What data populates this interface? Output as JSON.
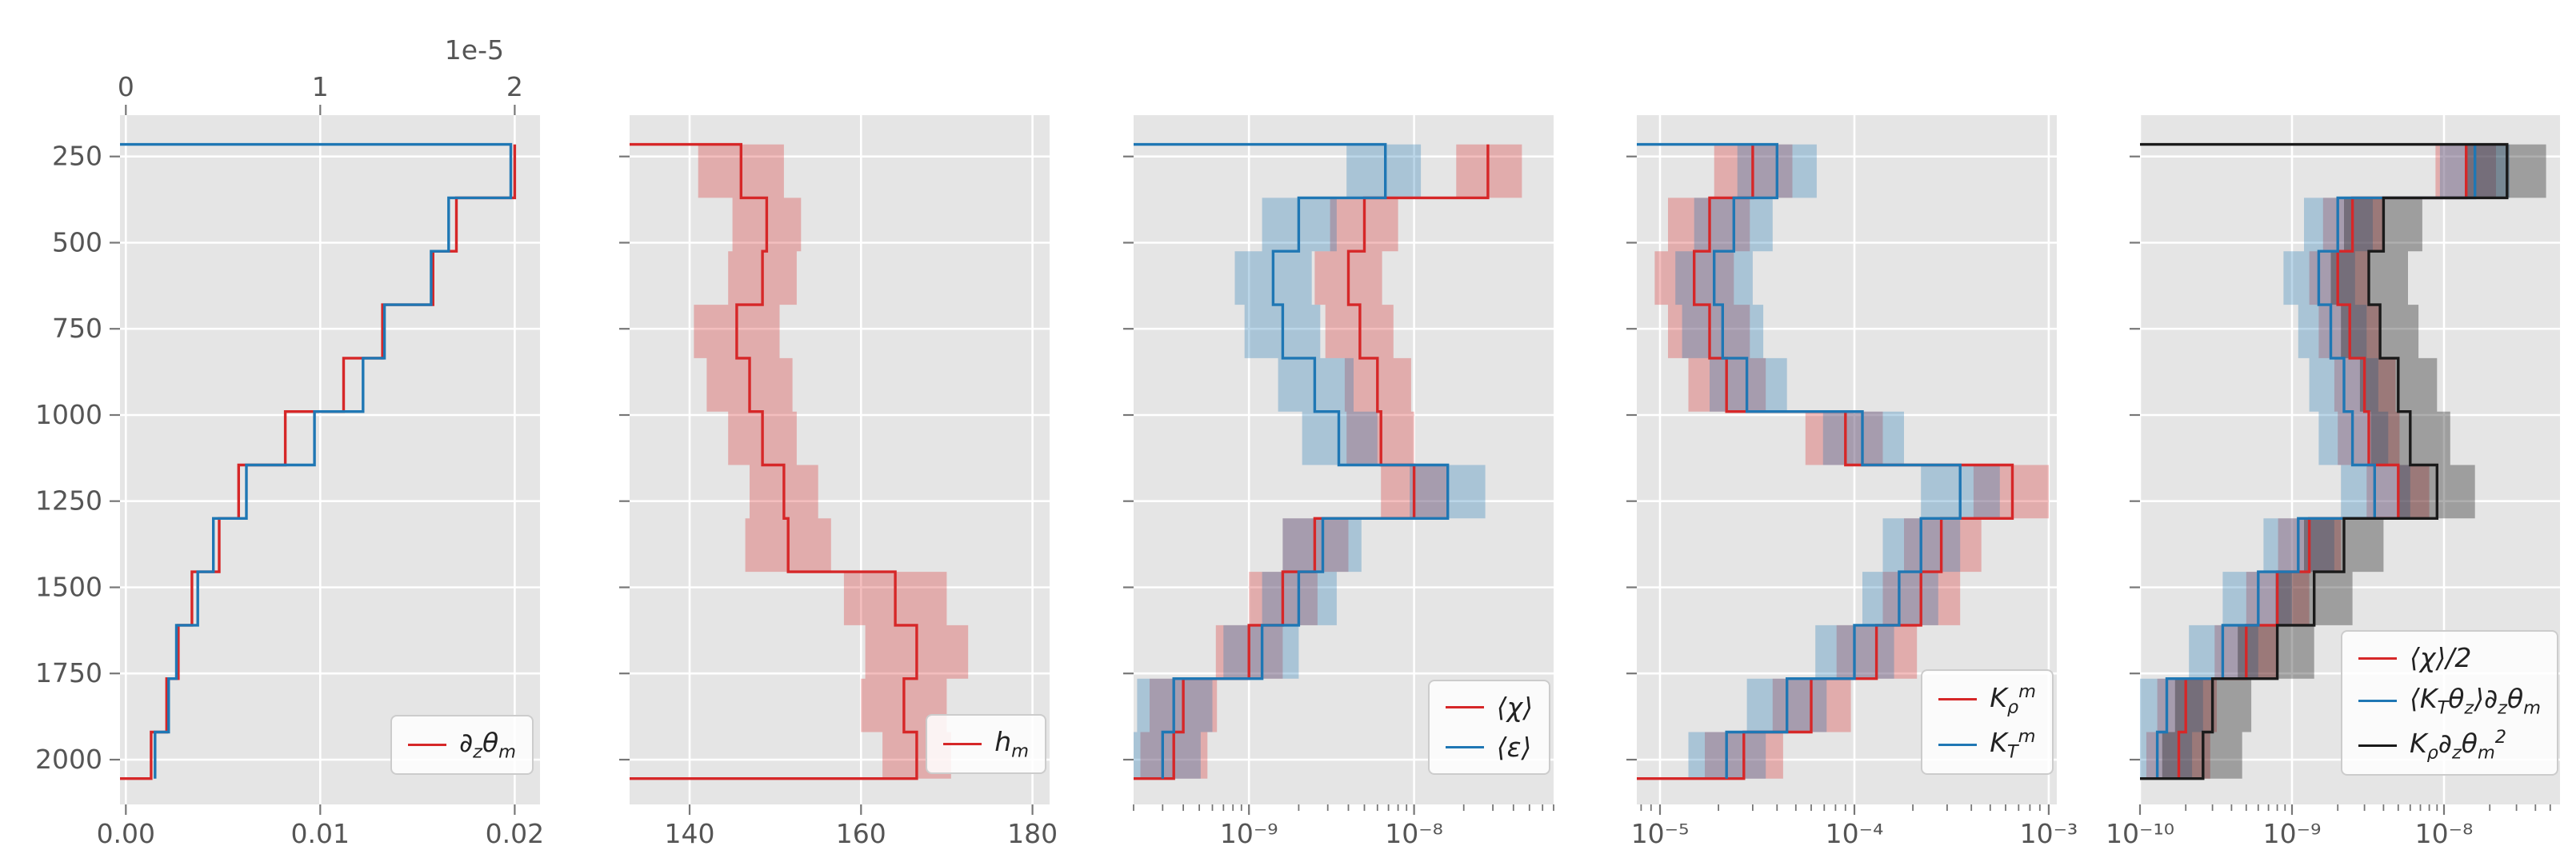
{
  "figure": {
    "background": "#ffffff",
    "panel_background": "#e5e5e5",
    "grid_color": "#ffffff",
    "tick_color": "#777777",
    "text_color": "#555555",
    "colors": {
      "red": "#d62728",
      "blue": "#1f77b4",
      "black": "#1a1a1a"
    }
  },
  "chart_data": {
    "type": "step-profile-panels",
    "shared": {
      "depth_lim": [
        130,
        2130
      ],
      "depth_ticks": [
        250,
        500,
        750,
        1000,
        1250,
        1500,
        1750,
        2000
      ],
      "depth_tick_labels": [
        "250",
        "500",
        "750",
        "1000",
        "1250",
        "1500",
        "1750",
        "2000"
      ],
      "bin_edges": [
        215,
        370,
        525,
        680,
        835,
        990,
        1145,
        1300,
        1455,
        1610,
        1765,
        1920,
        2055
      ]
    },
    "panels": [
      {
        "name": "dz-theta-m",
        "x": {
          "scale": "linear",
          "lim": [
            -0.0003,
            0.0213
          ],
          "ticks": [
            {
              "v": 0,
              "label": "0.00"
            },
            {
              "v": 0.01,
              "label": "0.01"
            },
            {
              "v": 0.02,
              "label": "0.02"
            }
          ]
        },
        "top_axis": {
          "scale": "linear",
          "lim": [
            -0.03,
            2.13
          ],
          "ticks": [
            {
              "v": 0,
              "label": "0"
            },
            {
              "v": 1,
              "label": "1"
            },
            {
              "v": 2,
              "label": "2"
            }
          ],
          "offset_label": "1e-5"
        },
        "series": [
          {
            "id": "dz-theta-m",
            "color": "red",
            "axis": "bottom",
            "end_at_left": true,
            "values": [
              0.02,
              0.017,
              0.0158,
              0.0132,
              0.0112,
              0.0082,
              0.0058,
              0.0048,
              0.0034,
              0.0027,
              0.0021,
              0.0013
            ]
          },
          {
            "id": "dz-theta-m-1e-5",
            "color": "blue",
            "axis": "top",
            "start_at_left": true,
            "values": [
              1.98,
              1.66,
              1.57,
              1.33,
              1.22,
              0.97,
              0.62,
              0.45,
              0.37,
              0.26,
              0.22,
              0.15
            ]
          }
        ],
        "legend": {
          "right": 8,
          "bottom": 37,
          "entries": [
            {
              "color": "red",
              "text": "∂_zθ_m",
              "segs": [
                [
                  "∂",
                  "n"
                ],
                [
                  "z",
                  "s"
                ],
                [
                  "θ",
                  "n"
                ],
                [
                  "m",
                  "s"
                ]
              ]
            }
          ]
        }
      },
      {
        "name": "h-m",
        "x": {
          "scale": "linear",
          "lim": [
            133,
            182
          ],
          "ticks": [
            {
              "v": 140,
              "label": "140"
            },
            {
              "v": 160,
              "label": "160"
            },
            {
              "v": 180,
              "label": "180"
            }
          ]
        },
        "series": [
          {
            "id": "h-m",
            "color": "red",
            "axis": "bottom",
            "start_at_left": true,
            "end_at_left": true,
            "values": [
              146,
              149,
              148.5,
              145.5,
              147,
              148.5,
              151,
              151.5,
              164,
              166.5,
              165,
              166.5
            ],
            "band": {
              "lo": [
                141,
                145,
                144.5,
                140.5,
                142,
                144.5,
                147,
                146.5,
                158,
                160.5,
                160,
                162.5
              ],
              "hi": [
                151,
                153,
                152.5,
                150.5,
                152,
                152.5,
                155,
                156.5,
                170,
                172.5,
                170,
                170.5
              ]
            }
          }
        ],
        "legend": {
          "right": 4,
          "bottom": 38,
          "entries": [
            {
              "color": "red",
              "text": "h_m",
              "segs": [
                [
                  "h",
                  "n"
                ],
                [
                  "m",
                  "s"
                ]
              ]
            }
          ]
        }
      },
      {
        "name": "chi-epsilon",
        "x": {
          "scale": "log",
          "lim": [
            2e-10,
            7e-08
          ],
          "ticks": [
            {
              "v": 1e-09,
              "label": "10⁻⁹"
            },
            {
              "v": 1e-08,
              "label": "10⁻⁸"
            }
          ]
        },
        "series": [
          {
            "id": "chi",
            "color": "red",
            "axis": "bottom",
            "end_at_left": true,
            "values": [
              2.8e-08,
              5e-09,
              4e-09,
              4.7e-09,
              6e-09,
              6.3e-09,
              1e-08,
              2.5e-09,
              1.6e-09,
              1e-09,
              4e-10,
              3.5e-10
            ],
            "band": {
              "lo": [
                1.8e-08,
                3.1e-09,
                2.5e-09,
                2.9e-09,
                3.8e-09,
                3.9e-09,
                6.3e-09,
                1.6e-09,
                1e-09,
                6.3e-10,
                2.5e-10,
                2.2e-10
              ],
              "hi": [
                4.5e-08,
                8e-09,
                6.4e-09,
                7.5e-09,
                9.6e-09,
                1e-08,
                1.6e-08,
                4e-09,
                2.6e-09,
                1.6e-09,
                6.4e-10,
                5.6e-10
              ]
            }
          },
          {
            "id": "epsilon",
            "color": "blue",
            "axis": "bottom",
            "start_at_left": true,
            "values": [
              6.7e-09,
              2e-09,
              1.4e-09,
              1.6e-09,
              2.5e-09,
              3.5e-09,
              1.6e-08,
              2.8e-09,
              2e-09,
              1.2e-09,
              3.5e-10,
              3e-10
            ],
            "band": {
              "lo": [
                3.9e-09,
                1.2e-09,
                8.2e-10,
                9.4e-10,
                1.5e-09,
                2.1e-09,
                9.4e-09,
                1.6e-09,
                1.2e-09,
                7e-10,
                2.1e-10,
                1.8e-10
              ],
              "hi": [
                1.1e-08,
                3.4e-09,
                2.4e-09,
                2.7e-09,
                4.3e-09,
                6e-09,
                2.7e-08,
                4.8e-09,
                3.4e-09,
                2e-09,
                6e-10,
                5.1e-10
              ]
            }
          }
        ],
        "legend": {
          "right": 4,
          "bottom": 37,
          "entries": [
            {
              "color": "red",
              "text": "⟨χ⟩",
              "segs": [
                [
                  "⟨χ⟩",
                  "n"
                ]
              ]
            },
            {
              "color": "blue",
              "text": "⟨ε⟩",
              "segs": [
                [
                  "⟨ε⟩",
                  "n"
                ]
              ]
            }
          ]
        }
      },
      {
        "name": "k-rho-kt",
        "x": {
          "scale": "log",
          "lim": [
            7.6e-06,
            0.0011
          ],
          "ticks": [
            {
              "v": 1e-05,
              "label": "10⁻⁵"
            },
            {
              "v": 0.0001,
              "label": "10⁻⁴"
            },
            {
              "v": 0.001,
              "label": "10⁻³"
            }
          ]
        },
        "series": [
          {
            "id": "k-rho-m",
            "color": "red",
            "axis": "bottom",
            "end_at_left": true,
            "values": [
              3e-05,
              1.8e-05,
              1.5e-05,
              1.8e-05,
              2.2e-05,
              9e-05,
              0.00065,
              0.00028,
              0.00022,
              0.00013,
              6e-05,
              2.7e-05
            ],
            "band": {
              "lo": [
                1.9e-05,
                1.1e-05,
                9.4e-06,
                1.1e-05,
                1.4e-05,
                5.6e-05,
                0.00041,
                0.00018,
                0.00014,
                8.1e-05,
                3.8e-05,
                1.7e-05
              ],
              "hi": [
                4.8e-05,
                2.9e-05,
                2.4e-05,
                2.9e-05,
                3.5e-05,
                0.00014,
                0.001,
                0.00045,
                0.00035,
                0.00021,
                9.6e-05,
                4.3e-05
              ]
            }
          },
          {
            "id": "k-t-m",
            "color": "blue",
            "axis": "bottom",
            "start_at_left": true,
            "values": [
              4e-05,
              2.4e-05,
              1.9e-05,
              2.1e-05,
              2.8e-05,
              0.00011,
              0.00035,
              0.00022,
              0.00017,
              0.0001,
              4.5e-05,
              2.2e-05
            ],
            "band": {
              "lo": [
                2.5e-05,
                1.5e-05,
                1.2e-05,
                1.3e-05,
                1.8e-05,
                6.9e-05,
                0.00022,
                0.00014,
                0.00011,
                6.3e-05,
                2.8e-05,
                1.4e-05
              ],
              "hi": [
                6.4e-05,
                3.8e-05,
                3e-05,
                3.4e-05,
                4.5e-05,
                0.00018,
                0.00056,
                0.00035,
                0.00027,
                0.00016,
                7.2e-05,
                3.5e-05
              ]
            }
          }
        ],
        "legend": {
          "right": 4,
          "bottom": 37,
          "entries": [
            {
              "color": "red",
              "text": "K_ρ^m",
              "segs": [
                [
                  "K",
                  "n"
                ],
                [
                  "ρ",
                  "s"
                ],
                [
                  "m",
                  "S"
                ]
              ]
            },
            {
              "color": "blue",
              "text": "K_T^m",
              "segs": [
                [
                  "K",
                  "n"
                ],
                [
                  "T",
                  "s"
                ],
                [
                  "m",
                  "S"
                ]
              ]
            }
          ]
        }
      },
      {
        "name": "chi-budget",
        "x": {
          "scale": "log",
          "lim": [
            1e-10,
            5.8e-08
          ],
          "ticks": [
            {
              "v": 1e-10,
              "label": "10⁻¹⁰"
            },
            {
              "v": 1e-09,
              "label": "10⁻⁹"
            },
            {
              "v": 1e-08,
              "label": "10⁻⁸"
            }
          ]
        },
        "series": [
          {
            "id": "chi-half",
            "color": "red",
            "axis": "bottom",
            "values": [
              1.4e-08,
              2.5e-09,
              2e-09,
              2.4e-09,
              3e-09,
              3.2e-09,
              5e-09,
              1.3e-09,
              8e-10,
              5e-10,
              2e-10,
              1.8e-10
            ],
            "band": {
              "lo": [
                8.8e-09,
                1.6e-09,
                1.3e-09,
                1.5e-09,
                1.9e-09,
                2e-09,
                3.1e-09,
                8.1e-10,
                5e-10,
                3.1e-10,
                1.3e-10,
                1.1e-10
              ],
              "hi": [
                2.2e-08,
                4e-09,
                3.2e-09,
                3.8e-09,
                4.8e-09,
                5.1e-09,
                8e-09,
                2.1e-09,
                1.3e-09,
                8e-10,
                3.2e-10,
                2.9e-10
              ]
            }
          },
          {
            "id": "kt-thetaz-dztheta",
            "color": "blue",
            "axis": "bottom",
            "values": [
              1.6e-08,
              2e-09,
              1.5e-09,
              1.8e-09,
              2.2e-09,
              2.5e-09,
              3.5e-09,
              1.1e-09,
              6e-10,
              3.5e-10,
              1.5e-10,
              1.3e-10
            ],
            "band": {
              "lo": [
                9.4e-09,
                1.2e-09,
                8.8e-10,
                1.1e-09,
                1.3e-09,
                1.5e-09,
                2.1e-09,
                6.5e-10,
                3.5e-10,
                2.1e-10,
                8.8e-11,
                7.6e-11
              ],
              "hi": [
                2.7e-08,
                3.4e-09,
                2.6e-09,
                3.1e-09,
                3.7e-09,
                4.3e-09,
                6e-09,
                1.9e-09,
                1e-09,
                6e-10,
                2.6e-10,
                2.2e-10
              ]
            }
          },
          {
            "id": "krho-dztheta-sq",
            "color": "black",
            "axis": "bottom",
            "start_at_left": true,
            "end_at_left": true,
            "values": [
              2.6e-08,
              4e-09,
              3.2e-09,
              3.8e-09,
              5e-09,
              6e-09,
              9e-09,
              2.2e-09,
              1.4e-09,
              8e-10,
              3e-10,
              2.6e-10
            ],
            "band": {
              "lo": [
                1.4e-08,
                2.2e-09,
                1.8e-09,
                2.1e-09,
                2.8e-09,
                3.3e-09,
                5e-09,
                1.2e-09,
                7.8e-10,
                4.4e-10,
                1.7e-10,
                1.4e-10
              ],
              "hi": [
                4.7e-08,
                7.2e-09,
                5.8e-09,
                6.8e-09,
                9e-09,
                1.1e-08,
                1.6e-08,
                4e-09,
                2.5e-09,
                1.4e-09,
                5.4e-10,
                4.7e-10
              ]
            }
          }
        ],
        "legend": {
          "right": 2,
          "bottom": 36,
          "entries": [
            {
              "color": "red",
              "text": "⟨χ⟩/2",
              "segs": [
                [
                  "⟨χ⟩/2",
                  "n"
                ]
              ]
            },
            {
              "color": "blue",
              "text": "⟨K_Tθ_z⟩∂_zθ_m",
              "segs": [
                [
                  "⟨K",
                  "n"
                ],
                [
                  "T",
                  "s"
                ],
                [
                  "θ",
                  "n"
                ],
                [
                  "z",
                  "s"
                ],
                [
                  "⟩∂",
                  "n"
                ],
                [
                  "z",
                  "s"
                ],
                [
                  "θ",
                  "n"
                ],
                [
                  "m",
                  "s"
                ]
              ]
            },
            {
              "color": "black",
              "text": "K_ρ∂_zθ_m²",
              "segs": [
                [
                  "K",
                  "n"
                ],
                [
                  "ρ",
                  "s"
                ],
                [
                  "∂",
                  "n"
                ],
                [
                  "z",
                  "s"
                ],
                [
                  "θ",
                  "n"
                ],
                [
                  "m",
                  "s"
                ],
                [
                  "2",
                  "S"
                ]
              ]
            }
          ]
        }
      }
    ]
  }
}
